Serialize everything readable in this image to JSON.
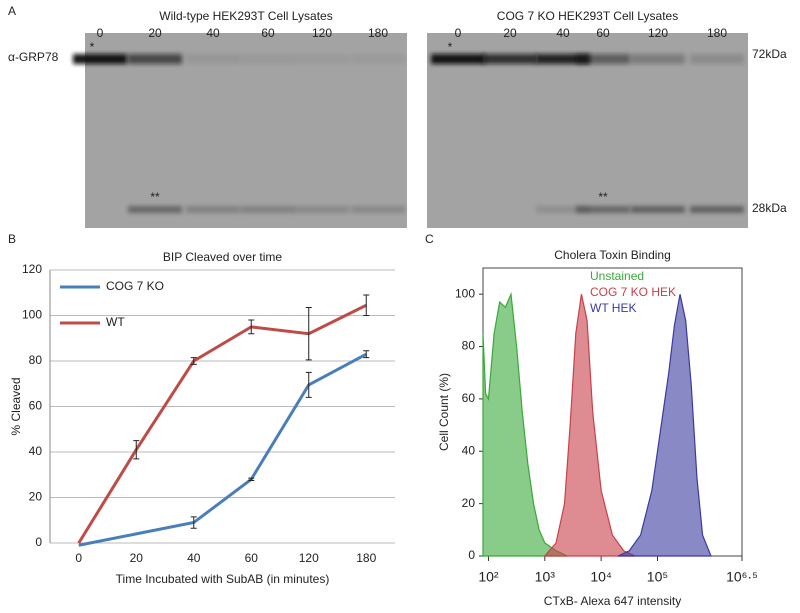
{
  "panel_a": {
    "label": "A",
    "marker": "α-GRP78",
    "size_markers": [
      "72kDa",
      "28kDa"
    ],
    "blots": [
      {
        "title": "Wild-type HEK293T Cell Lysates",
        "lanes": [
          "0",
          "20",
          "40",
          "60",
          "120",
          "180"
        ],
        "star": "*",
        "double_star": "**"
      },
      {
        "title": "COG 7 KO HEK293T Cell Lysates",
        "lanes": [
          "0",
          "20",
          "40",
          "60",
          "120",
          "180"
        ],
        "star": "*",
        "double_star": "**"
      }
    ]
  },
  "chart_data": [
    {
      "type": "line",
      "panel_label": "B",
      "title": "BIP Cleaved over time",
      "x_label": "Time Incubated with SubAB (in minutes)",
      "y_label": "% Cleaved",
      "categories": [
        "0",
        "20",
        "40",
        "60",
        "120",
        "180"
      ],
      "ylim": [
        0,
        120
      ],
      "yticks": [
        0,
        20,
        40,
        60,
        80,
        100,
        120
      ],
      "grid": true,
      "legend": "upper-left",
      "series": [
        {
          "name": "COG 7 KO",
          "color": "#4a7ebb",
          "values": [
            -1,
            4,
            9,
            28,
            69.5,
            83
          ],
          "errors": [
            null,
            null,
            2.5,
            0.5,
            5.5,
            1.5
          ]
        },
        {
          "name": "WT",
          "color": "#be4b48",
          "values": [
            0,
            41,
            80,
            95,
            92,
            104.5
          ],
          "errors": [
            null,
            4,
            1.5,
            3,
            11.5,
            4.5
          ]
        }
      ]
    },
    {
      "type": "area",
      "panel_label": "C",
      "title": "Cholera Toxin Binding",
      "x_label": "CTxB- Alexa 647 intensity",
      "y_label": "Cell Count (%)",
      "log_x": true,
      "xlim": [
        80,
        3162278
      ],
      "xticks": [
        {
          "value": 100,
          "label": "10²"
        },
        {
          "value": 1000,
          "label": "10³"
        },
        {
          "value": 10000,
          "label": "10⁴"
        },
        {
          "value": 100000,
          "label": "10⁵"
        },
        {
          "value": 3162278,
          "label": "10⁶·⁵"
        }
      ],
      "ylim": [
        0,
        110
      ],
      "yticks": [
        0,
        20,
        40,
        60,
        80,
        100
      ],
      "grid": false,
      "series": [
        {
          "name": "Unstained",
          "color": "#3aa83a",
          "x": [
            80,
            89,
            100,
            126,
            158,
            200,
            251,
            316,
            398,
            501,
            631,
            794,
            1000,
            1585,
            2512
          ],
          "values": [
            85,
            62,
            60,
            85,
            97,
            95,
            100,
            80,
            55,
            35,
            20,
            10,
            5,
            2,
            0
          ]
        },
        {
          "name": "COG 7 KO HEK",
          "color": "#c8404a",
          "x": [
            1000,
            1585,
            2239,
            2818,
            3548,
            4467,
            5623,
            7079,
            10000,
            15849,
            25119,
            39811
          ],
          "values": [
            0,
            5,
            20,
            50,
            85,
            100,
            90,
            55,
            25,
            8,
            2,
            0
          ]
        },
        {
          "name": "WT HEK",
          "color": "#3a3aa0",
          "x": [
            19953,
            31623,
            50119,
            79433,
            100000,
            125893,
            158489,
            199526,
            251189,
            316228,
            398107,
            501187,
            630957,
            891251
          ],
          "values": [
            0,
            2,
            8,
            25,
            40,
            55,
            70,
            88,
            100,
            90,
            65,
            30,
            8,
            0
          ]
        }
      ]
    }
  ]
}
